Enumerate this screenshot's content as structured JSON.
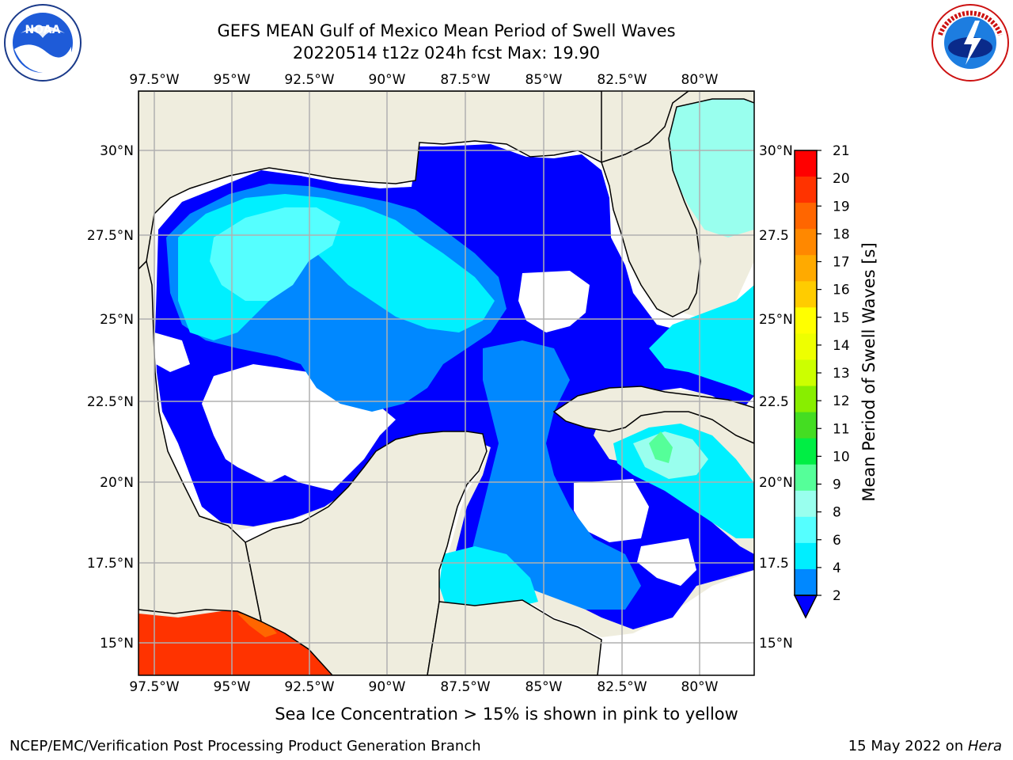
{
  "title": {
    "line1": "GEFS MEAN Gulf of Mexico Mean Period of Swell Waves",
    "line2": "20220514 t12z 024h fcst   Max: 19.90"
  },
  "logos": {
    "left": {
      "name": "NOAA",
      "text": "NOAA",
      "ring_text": "NATIONAL OCEANIC AND ATMOSPHERIC ADMINISTRATION · U.S. DEPARTMENT OF COMMERCE"
    },
    "right": {
      "name": "National Weather Service",
      "ring_text": "NATIONAL WEATHER SERVICE"
    }
  },
  "map": {
    "lon_labels": [
      "97.5°W",
      "95°W",
      "92.5°W",
      "90°W",
      "87.5°W",
      "85°W",
      "82.5°W",
      "80°W"
    ],
    "lat_labels_left": [
      "30°N",
      "27.5°N",
      "25°N",
      "22.5°N",
      "20°N",
      "17.5°N",
      "15°N"
    ],
    "lat_labels_right": [
      "30°N",
      "27.5",
      "25°N",
      "22.5",
      "20°N",
      "17.5",
      "15°N"
    ],
    "land_color": "#efedde",
    "grid_color": "#b0b0b0"
  },
  "colorbar": {
    "label": "Mean Period of Swell Waves [s]",
    "ticks": [
      "21",
      "20",
      "19",
      "18",
      "17",
      "16",
      "15",
      "14",
      "13",
      "12",
      "11",
      "10",
      "9",
      "8",
      "6",
      "4",
      "2"
    ],
    "colors": [
      "#ff0000",
      "#ff3300",
      "#ff6600",
      "#ff8800",
      "#ffaa00",
      "#ffcc00",
      "#ffff00",
      "#eeff00",
      "#ccff00",
      "#88ee00",
      "#44dd22",
      "#00ee44",
      "#55ff99",
      "#99ffee",
      "#55ffff",
      "#00eeff",
      "#0088ff",
      "#0000ff"
    ]
  },
  "footer": {
    "caption": "Sea Ice Concentration > 15% is shown in pink to yellow",
    "credit": "NCEP/EMC/Verification Post Processing Product Generation Branch",
    "date_prefix": "15 May 2022 on ",
    "date_machine": "Hera"
  }
}
